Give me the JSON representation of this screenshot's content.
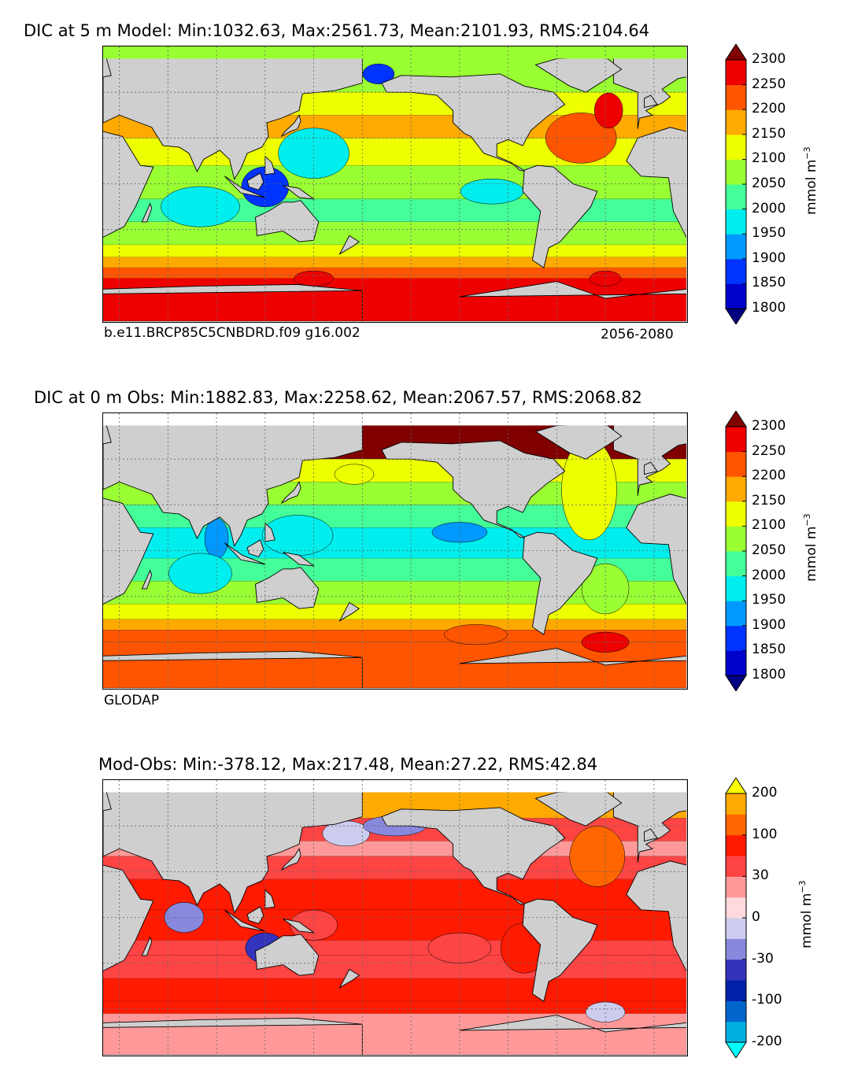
{
  "chart_data": [
    {
      "type": "contour-map",
      "title": "DIC at 5 m Model: Min:1032.63, Max:2561.73, Mean:2101.93, RMS:2104.64",
      "caption_left": "b.e11.BRCP85C5CNBDRD.f09 g16.002",
      "caption_right": "2056-2080",
      "colorbar": {
        "units": "mmol m",
        "units_exponent": "−3",
        "levels": [
          1750,
          1800,
          1850,
          1900,
          1950,
          2000,
          2050,
          2100,
          2150,
          2200,
          2250,
          2300,
          2350
        ],
        "tick_labels": [
          "1800",
          "1850",
          "1900",
          "1950",
          "2000",
          "2050",
          "2100",
          "2150",
          "2200",
          "2250",
          "2300"
        ],
        "colors": [
          "#000080",
          "#0000cd",
          "#0033ff",
          "#0099ff",
          "#00eeee",
          "#44ff99",
          "#99ff33",
          "#eeff00",
          "#ffaa00",
          "#ff5500",
          "#ee0000",
          "#800000"
        ],
        "extend": "both"
      },
      "field_stats": {
        "min": 1032.63,
        "max": 2561.73,
        "mean": 2101.93,
        "rms": 2104.64
      }
    },
    {
      "type": "contour-map",
      "title": "DIC at 0 m Obs: Min:1882.83, Max:2258.62, Mean:2067.57, RMS:2068.82",
      "caption_left": "GLODAP",
      "colorbar": {
        "units": "mmol m",
        "units_exponent": "−3",
        "levels": [
          1750,
          1800,
          1850,
          1900,
          1950,
          2000,
          2050,
          2100,
          2150,
          2200,
          2250,
          2300,
          2350
        ],
        "tick_labels": [
          "1800",
          "1850",
          "1900",
          "1950",
          "2000",
          "2050",
          "2100",
          "2150",
          "2200",
          "2250",
          "2300"
        ],
        "colors": [
          "#000080",
          "#0000cd",
          "#0033ff",
          "#0099ff",
          "#00eeee",
          "#44ff99",
          "#99ff33",
          "#eeff00",
          "#ffaa00",
          "#ff5500",
          "#ee0000",
          "#800000"
        ],
        "extend": "both"
      },
      "field_stats": {
        "min": 1882.83,
        "max": 2258.62,
        "mean": 2067.57,
        "rms": 2068.82
      }
    },
    {
      "type": "contour-map",
      "title": "Mod-Obs: Min:-378.12, Max:217.48, Mean:27.22, RMS:42.84",
      "colorbar": {
        "units": "mmol m",
        "units_exponent": "−3",
        "levels": [
          -300,
          -200,
          -150,
          -100,
          -50,
          -30,
          -10,
          0,
          10,
          30,
          50,
          100,
          150,
          200,
          300
        ],
        "tick_labels": [
          "-200",
          "-100",
          "-30",
          "0",
          "30",
          "100",
          "200"
        ],
        "colors": [
          "#00ffff",
          "#00b0e0",
          "#0066cc",
          "#0022aa",
          "#3333bb",
          "#8888dd",
          "#ccccee",
          "#ffd9dd",
          "#ff9999",
          "#ff4444",
          "#ff1a00",
          "#ff6600",
          "#ffaa00",
          "#ffff00"
        ],
        "extend": "both"
      },
      "field_stats": {
        "min": -378.12,
        "max": 217.48,
        "mean": 27.22,
        "rms": 42.84
      }
    }
  ],
  "theme": {
    "land": "#cfcfcf",
    "ice": "#ffffff",
    "grid": "#666666"
  }
}
